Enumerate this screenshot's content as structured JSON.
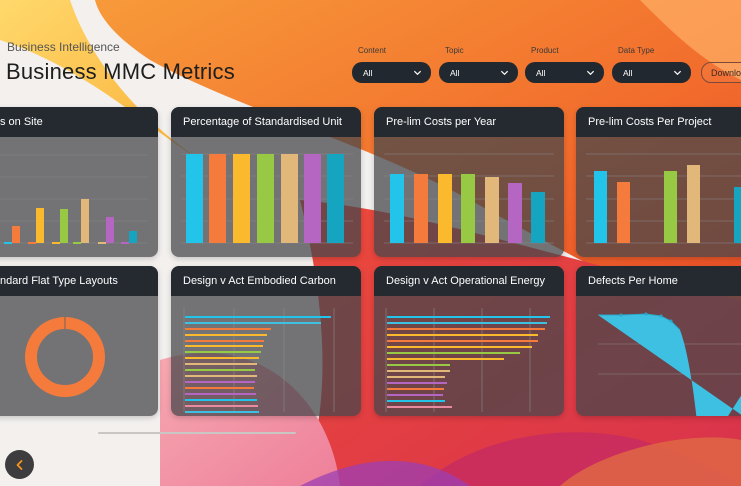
{
  "header": {
    "eyebrow": "Business Intelligence",
    "title": "Business MMC Metrics"
  },
  "filters": [
    {
      "label": "Content",
      "value": "All"
    },
    {
      "label": "Topic",
      "value": "All"
    },
    {
      "label": "Product",
      "value": "All"
    },
    {
      "label": "Data Type",
      "value": "All"
    }
  ],
  "download_label": "Download",
  "cards": [
    {
      "title": "s on Site"
    },
    {
      "title": "Percentage of Standardised Unit"
    },
    {
      "title": "Pre-lim Costs per Year"
    },
    {
      "title": "Pre-lim Costs Per Project"
    },
    {
      "title": "ndard Flat Type Layouts"
    },
    {
      "title": "Design v Act Embodied Carbon"
    },
    {
      "title": "Design v Act Operational Energy"
    },
    {
      "title": "Defects Per Home"
    }
  ],
  "colors": {
    "cyan": "#22c4ea",
    "orange": "#f47b3c",
    "yellow": "#fbb92d",
    "green": "#97c945",
    "tan": "#e2b77a",
    "purple": "#b566c3",
    "teal": "#15a5c1",
    "blue": "#3ec0e3"
  },
  "icons": {
    "dropdown": "chevron-down-icon",
    "back": "chevron-left-icon"
  },
  "chart_data": [
    {
      "type": "bar",
      "title": "s on Site",
      "values": [
        0.1,
        0.2,
        0.38,
        0.37,
        0.48,
        0.28,
        0.13
      ]
    },
    {
      "type": "bar",
      "title": "Percentage of Standardised Unit",
      "values": [
        1,
        1,
        1,
        1,
        1,
        1,
        1
      ]
    },
    {
      "type": "bar",
      "title": "Pre-lim Costs per Year",
      "values": [
        0.75,
        0.75,
        0.75,
        0.75,
        0.72,
        0.65,
        0.55
      ]
    },
    {
      "type": "bar",
      "title": "Pre-lim Costs Per Project",
      "values": [
        0.78,
        0.65,
        0,
        0.78,
        0.84,
        0.6
      ]
    },
    {
      "type": "pie",
      "title": "ndard Flat Type Layouts",
      "values": [
        100
      ]
    },
    {
      "type": "bar",
      "title": "Design v Act Embodied Carbon",
      "values": [
        0.92,
        0.86,
        0.52,
        0.5,
        0.47,
        0.47,
        0.45,
        0.45,
        0.44,
        0.43,
        0.45,
        0.43,
        0.42,
        0.44,
        0.44,
        0.45,
        0.46
      ]
    },
    {
      "type": "bar",
      "title": "Design v Act Operational Energy",
      "values": [
        0.98,
        0.96,
        0.95,
        0.9,
        0.9,
        0.87,
        0.8,
        0.7,
        0.38,
        0.38,
        0.35,
        0.36,
        0.34,
        0.34,
        0.35,
        0.4
      ]
    },
    {
      "type": "area",
      "title": "Defects Per Home",
      "values": [
        0.98,
        0.98,
        0.99,
        0.97,
        0.93,
        0.82,
        0.02,
        0.02,
        0.02,
        0.02,
        0.15,
        0.37
      ]
    }
  ]
}
